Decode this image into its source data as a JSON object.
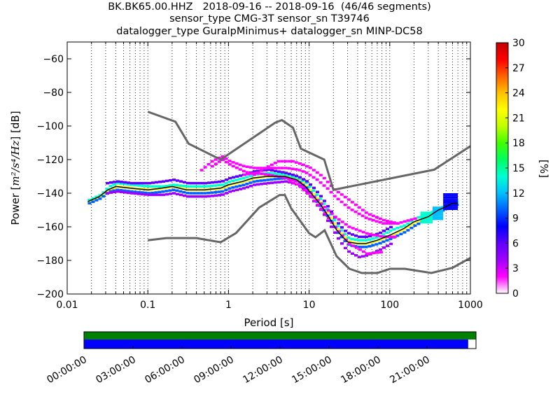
{
  "title": {
    "line1": "BK.BK65.00.HHZ   2018-09-16 -- 2018-09-16  (46/46 segments)",
    "line2": "sensor_type CMG-3T sensor_sn T39746",
    "line3": "datalogger_type GuralpMinimus+ datalogger_sn MINP-DC58"
  },
  "chart_data": {
    "type": "heatmap",
    "xlabel": "Period [s]",
    "ylabel_prefix": "Power [",
    "ylabel_math": "m²/s⁴/Hz",
    "ylabel_suffix": "] [dB]",
    "x_scale": "log",
    "xlim": [
      0.01,
      1000
    ],
    "ylim": [
      -200,
      -50
    ],
    "x_ticks": [
      0.01,
      0.1,
      1,
      10,
      100,
      1000
    ],
    "x_tick_labels": [
      "0.01",
      "0.1",
      "1",
      "10",
      "100",
      "1000"
    ],
    "y_ticks": [
      -200,
      -180,
      -160,
      -140,
      -120,
      -100,
      -80,
      -60
    ],
    "y_tick_labels": [
      "−200",
      "−180",
      "−160",
      "−140",
      "−120",
      "−100",
      "−80",
      "−60"
    ],
    "grid": "dotted vertical",
    "colorbar": {
      "label": "[%]",
      "range": [
        0,
        30
      ],
      "ticks": [
        0,
        3,
        6,
        9,
        12,
        15,
        18,
        21,
        24,
        27,
        30
      ],
      "tick_labels": [
        "0",
        "3",
        "6",
        "9",
        "12",
        "15",
        "18",
        "21",
        "24",
        "27",
        "30"
      ],
      "colormap": [
        "#ffffff",
        "#ff00ff",
        "#a000ff",
        "#6000ff",
        "#0000ff",
        "#0060ff",
        "#00c0ff",
        "#00ffd0",
        "#00ff60",
        "#40ff00",
        "#c0ff00",
        "#ffff00",
        "#ffc000",
        "#ff6000",
        "#ff0000",
        "#c00000"
      ]
    },
    "noise_model_high": {
      "color": "#666666",
      "x": [
        0.1,
        0.22,
        0.32,
        0.8,
        3.8,
        4.6,
        6.3,
        7.9,
        15.4,
        20,
        354.8,
        1000
      ],
      "y": [
        -91.5,
        -97.4,
        -110.5,
        -120,
        -98,
        -96.5,
        -101,
        -113.5,
        -120,
        -138,
        -126,
        -112
      ]
    },
    "noise_model_low": {
      "color": "#666666",
      "x": [
        0.1,
        0.17,
        0.4,
        0.8,
        1.24,
        2.4,
        4.3,
        5.0,
        6.0,
        10,
        12,
        15.6,
        21.9,
        31.6,
        45,
        70,
        101,
        154,
        328,
        600,
        1000
      ],
      "y": [
        -168,
        -166.7,
        -166.7,
        -169.2,
        -163.7,
        -148.6,
        -141.1,
        -141.1,
        -149.0,
        -163.8,
        -166.2,
        -162.1,
        -177.5,
        -185.0,
        -187.5,
        -187.5,
        -185.0,
        -185.0,
        -187.5,
        -184.4,
        -178.5
      ]
    },
    "median": {
      "color": "#000000",
      "x": [
        0.018,
        0.025,
        0.032,
        0.04,
        0.06,
        0.1,
        0.15,
        0.2,
        0.3,
        0.5,
        0.8,
        1,
        1.5,
        2,
        3,
        5,
        7,
        9,
        11,
        14,
        18,
        22,
        26,
        30,
        40,
        50,
        70,
        100,
        150,
        200,
        300,
        400,
        500,
        600,
        700
      ],
      "y": [
        -145,
        -142,
        -138,
        -136,
        -137,
        -138,
        -137,
        -136,
        -138,
        -138,
        -137,
        -135,
        -133,
        -131,
        -130,
        -130,
        -132,
        -136,
        -141,
        -147,
        -155,
        -162,
        -166,
        -169,
        -170,
        -170,
        -168,
        -165,
        -161,
        -157,
        -154,
        -150,
        -148,
        -146,
        -146
      ]
    },
    "density_series": [
      {
        "x": [
          0.018,
          0.025,
          0.032,
          0.04,
          0.06,
          0.1,
          0.15,
          0.2,
          0.3,
          0.5,
          0.8,
          1,
          1.5,
          2,
          3,
          5,
          7,
          9,
          11,
          14,
          18,
          22,
          26,
          30,
          40,
          50,
          70,
          100,
          150,
          200,
          300,
          400,
          500,
          600,
          700
        ],
        "y": [
          -145,
          -142,
          -138,
          -136,
          -137,
          -138,
          -137,
          -136,
          -138,
          -138,
          -137,
          -135,
          -133,
          -131,
          -130,
          -130,
          -132,
          -136,
          -141,
          -147,
          -155,
          -162,
          -166,
          -169,
          -170,
          -170,
          -168,
          -165,
          -161,
          -157,
          -154,
          -150,
          -148,
          -146,
          -146
        ],
        "pct": 22
      },
      {
        "x": [
          0.018,
          0.025,
          0.032,
          0.04,
          0.06,
          0.1,
          0.15,
          0.2,
          0.3,
          0.5,
          0.8,
          1,
          1.5,
          2,
          3,
          5,
          7,
          9,
          11,
          14,
          18,
          22,
          26,
          30,
          40,
          50,
          70,
          100,
          150,
          200,
          300,
          400,
          500,
          600,
          700
        ],
        "y": [
          -144,
          -141,
          -136,
          -134,
          -135,
          -136,
          -136,
          -135,
          -136,
          -136,
          -135,
          -133,
          -131,
          -129,
          -128,
          -129,
          -131,
          -134,
          -139,
          -145,
          -153,
          -160,
          -164,
          -167,
          -168,
          -168,
          -166,
          -162,
          -159,
          -155,
          -152,
          -149,
          -147,
          -145,
          -145
        ],
        "pct": 14
      },
      {
        "x": [
          0.018,
          0.025,
          0.032,
          0.04,
          0.06,
          0.1,
          0.15,
          0.2,
          0.3,
          0.5,
          0.8,
          1,
          1.5,
          2,
          3,
          5,
          7,
          9,
          11,
          14,
          18,
          22,
          26,
          30,
          40,
          50,
          70,
          100,
          150,
          200,
          300,
          400,
          500,
          600,
          700
        ],
        "y": [
          -146,
          -143,
          -139,
          -138,
          -139,
          -140,
          -139,
          -138,
          -140,
          -140,
          -139,
          -137,
          -135,
          -133,
          -132,
          -131,
          -133,
          -137,
          -143,
          -149,
          -157,
          -164,
          -168,
          -171,
          -172,
          -172,
          -170,
          -167,
          -163,
          -159,
          -155,
          -151,
          -149,
          -147,
          -147
        ],
        "pct": 10
      },
      {
        "x": [
          0.03,
          0.04,
          0.06,
          0.1,
          0.15,
          0.2,
          0.3,
          0.5,
          0.8,
          1,
          1.5,
          2,
          3,
          5,
          7,
          9,
          11,
          14,
          18,
          22,
          26,
          30,
          40,
          50,
          70,
          100
        ],
        "y": [
          -134,
          -133,
          -134,
          -134,
          -133,
          -132,
          -134,
          -134,
          -133,
          -131,
          -129,
          -127,
          -126,
          -128,
          -130,
          -133,
          -137,
          -143,
          -151,
          -158,
          -162,
          -164,
          -166,
          -166,
          -164,
          -160
        ],
        "pct": 5
      },
      {
        "x": [
          0.03,
          0.04,
          0.06,
          0.1,
          0.15,
          0.2,
          0.3,
          0.5,
          0.8,
          1,
          1.5,
          2,
          3,
          5,
          7,
          9,
          11,
          14,
          18,
          22,
          26,
          30,
          40,
          50,
          70,
          100
        ],
        "y": [
          -140,
          -139,
          -140,
          -141,
          -141,
          -140,
          -142,
          -142,
          -141,
          -139,
          -137,
          -135,
          -134,
          -133,
          -135,
          -139,
          -145,
          -151,
          -160,
          -167,
          -172,
          -175,
          -178,
          -177,
          -174,
          -170
        ],
        "pct": 4
      },
      {
        "x": [
          0.4,
          0.6,
          0.8,
          1,
          1.5,
          2,
          3,
          5,
          7,
          9,
          12,
          16,
          20,
          30,
          50,
          80,
          120,
          200
        ],
        "y": [
          -128,
          -121,
          -118,
          -121,
          -124,
          -125,
          -125,
          -125,
          -126,
          -128,
          -132,
          -137,
          -142,
          -149,
          -155,
          -158,
          -158,
          -155
        ],
        "pct": 2
      },
      {
        "x": [
          0.6,
          0.8,
          1,
          1.5,
          2,
          3,
          4,
          6,
          8,
          10,
          14,
          20,
          30,
          50,
          80,
          120
        ],
        "y": [
          -124,
          -120,
          -123,
          -127,
          -129,
          -124,
          -121,
          -121,
          -123,
          -125,
          -130,
          -138,
          -144,
          -152,
          -156,
          -158
        ],
        "pct": 2
      },
      {
        "x": [
          1.5,
          2,
          3,
          5,
          7,
          10,
          14,
          20,
          30,
          50,
          80,
          120
        ],
        "y": [
          -129,
          -128,
          -129,
          -131,
          -133,
          -140,
          -147,
          -154,
          -160,
          -164,
          -166,
          -166
        ],
        "pct": 2
      },
      {
        "x": [
          5,
          7,
          10,
          14,
          20,
          30,
          50,
          80
        ],
        "y": [
          -132,
          -135,
          -142,
          -150,
          -160,
          -170,
          -176,
          -175
        ],
        "pct": 2
      }
    ],
    "high_period_blocks": [
      {
        "x0": 240,
        "x1": 340,
        "y": [
          -151,
          -158
        ],
        "pct": 14
      },
      {
        "x0": 340,
        "x1": 460,
        "y": [
          -148,
          -156
        ],
        "pct": 12
      },
      {
        "x0": 460,
        "x1": 700,
        "y": [
          -140,
          -150
        ],
        "pct": 8
      }
    ]
  },
  "timeline": {
    "color_top": "#008000",
    "color_bottom": "#0000ff",
    "green_fraction": 1.0,
    "blue_fraction": 0.98,
    "tick_labels": [
      "00:00:00",
      "03:00:00",
      "06:00:00",
      "09:00:00",
      "12:00:00",
      "15:00:00",
      "18:00:00",
      "21:00:00"
    ]
  }
}
